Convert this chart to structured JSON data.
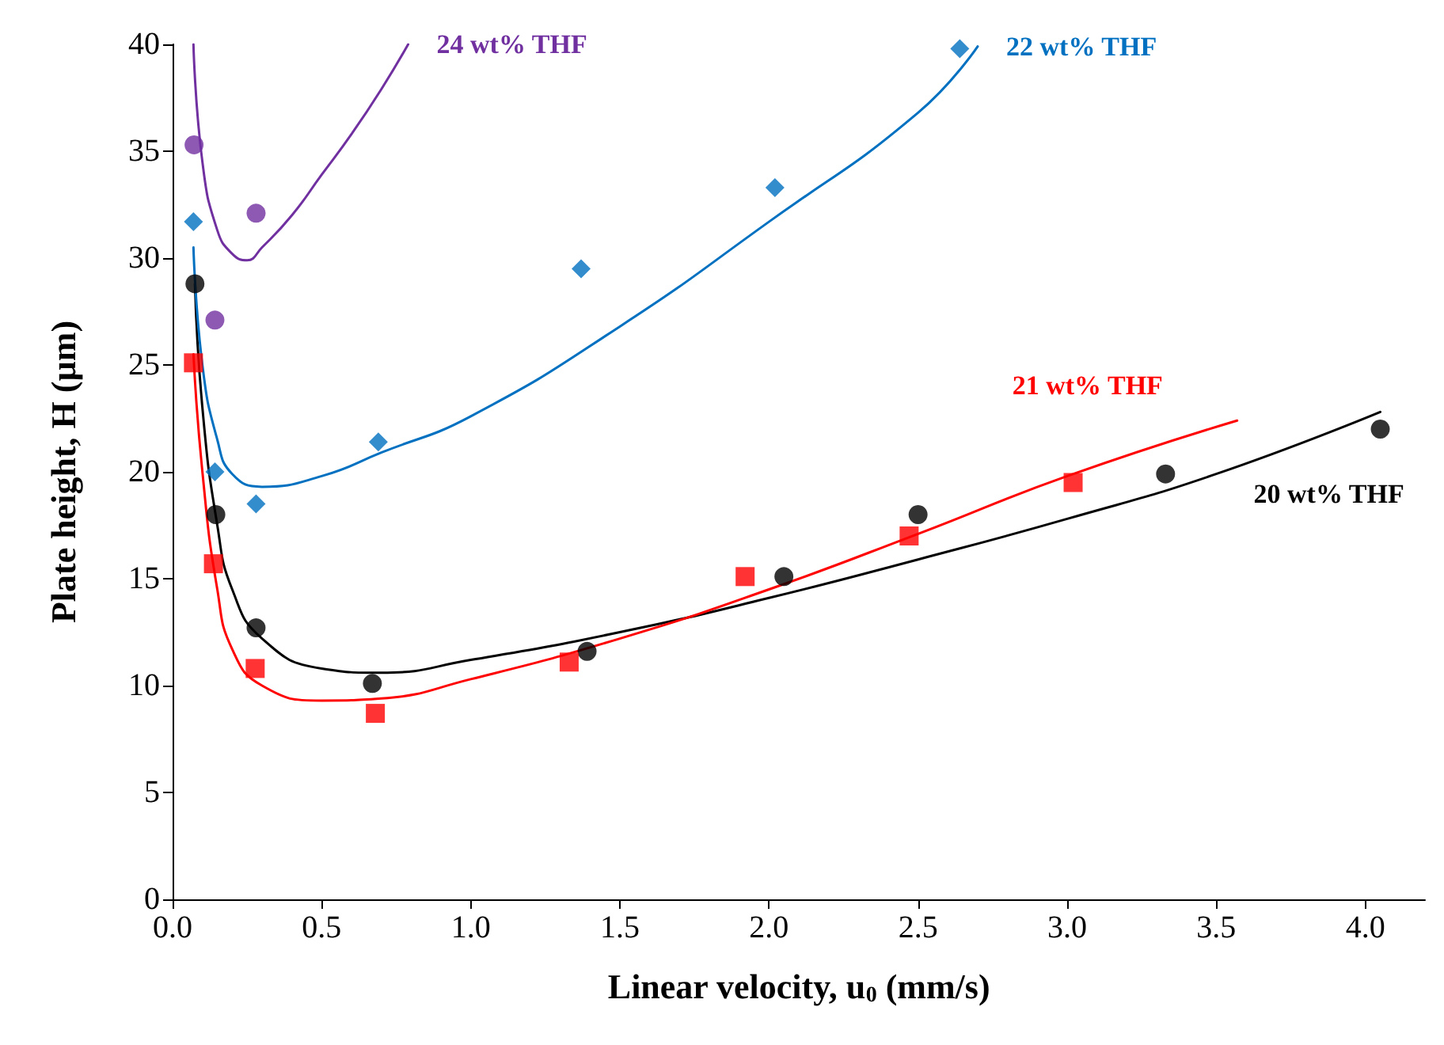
{
  "chart_data": {
    "type": "scatter",
    "xlabel": "Linear velocity, u$_{0}$ (mm/s)",
    "ylabel": "Plate height, H (µm)",
    "xlim": [
      0,
      4.2
    ],
    "xticks": [
      {
        "value": 0,
        "label": "0.0"
      },
      {
        "value": 0.5,
        "label": "0.5"
      },
      {
        "value": 1,
        "label": "1.0"
      },
      {
        "value": 1.5,
        "label": "1.5"
      },
      {
        "value": 2,
        "label": "2.0"
      },
      {
        "value": 2.5,
        "label": "2.5"
      },
      {
        "value": 3,
        "label": "3.0"
      },
      {
        "value": 3.5,
        "label": "3.5"
      },
      {
        "value": 4,
        "label": "4.0"
      }
    ],
    "ylim": [
      0,
      40
    ],
    "yticks": [
      0,
      5,
      10,
      15,
      20,
      25,
      30,
      35,
      40
    ],
    "grid": false,
    "series": [
      {
        "marker": "circle",
        "color": "#000000",
        "x": [
          0.075,
          0.145,
          0.28,
          0.67,
          1.39,
          2.05,
          2.5,
          3.33,
          4.05
        ],
        "values": [
          28.8,
          18.0,
          12.7,
          10.1,
          11.6,
          15.1,
          18.0,
          19.9,
          22.0
        ]
      },
      {
        "marker": "square",
        "color": "#ff0000",
        "x": [
          0.07,
          0.137,
          0.277,
          0.68,
          1.33,
          1.92,
          2.47,
          3.02
        ],
        "values": [
          25.1,
          15.7,
          10.8,
          8.7,
          11.1,
          15.1,
          17.0,
          19.5
        ]
      },
      {
        "marker": "diamond",
        "color": "#0070c0",
        "x": [
          0.07,
          0.142,
          0.28,
          0.69,
          1.37,
          2.02,
          2.64
        ],
        "values": [
          31.7,
          20.0,
          18.5,
          21.4,
          29.5,
          33.3,
          39.8
        ]
      },
      {
        "marker": "circle",
        "color": "#7030a0",
        "x": [
          0.072,
          0.142,
          0.28
        ],
        "values": [
          35.3,
          27.1,
          32.1
        ]
      },
      {
        "type": "line",
        "name": "20 wt% THF",
        "color": "#000000",
        "x": [
          0.075,
          0.1,
          0.15,
          0.2,
          0.3,
          0.5,
          0.7,
          1.0,
          1.5,
          2.0,
          2.5,
          3.0,
          3.5,
          4.05
        ],
        "values": [
          28.8,
          23,
          17.5,
          14.5,
          12.2,
          10.8,
          10.6,
          11.2,
          12.5,
          14.1,
          15.9,
          17.8,
          19.9,
          22.8
        ]
      },
      {
        "type": "line",
        "name": "21 wt% THF",
        "color": "#ff0000",
        "x": [
          0.07,
          0.1,
          0.15,
          0.2,
          0.3,
          0.5,
          0.7,
          1.0,
          1.5,
          2.0,
          2.5,
          3.0,
          3.57
        ],
        "values": [
          25.5,
          20,
          14.5,
          11.7,
          10.0,
          9.3,
          9.4,
          10.3,
          12.2,
          14.5,
          17.1,
          19.8,
          22.4
        ]
      },
      {
        "type": "line",
        "name": "22 wt% THF",
        "color": "#0070c0",
        "x": [
          0.07,
          0.1,
          0.15,
          0.2,
          0.3,
          0.5,
          0.7,
          1.0,
          1.5,
          2.0,
          2.5,
          2.7
        ],
        "values": [
          30.5,
          25,
          21.5,
          19.9,
          19.3,
          19.8,
          20.9,
          22.6,
          26.8,
          31.7,
          36.8,
          39.9
        ]
      },
      {
        "type": "line",
        "name": "24 wt% THF",
        "color": "#7030a0",
        "x": [
          0.07,
          0.1,
          0.15,
          0.2,
          0.25,
          0.3,
          0.4,
          0.5,
          0.6,
          0.7,
          0.79
        ],
        "values": [
          40,
          34.5,
          31.3,
          30.2,
          29.9,
          30.5,
          32.0,
          33.9,
          35.8,
          37.9,
          40
        ]
      }
    ]
  }
}
